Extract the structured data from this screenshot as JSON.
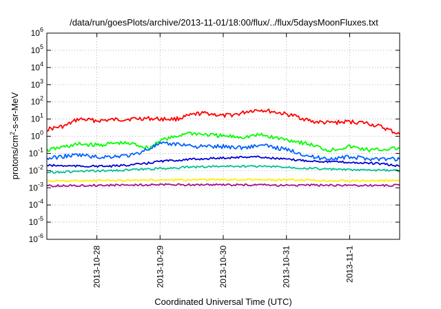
{
  "chart_data": {
    "type": "line",
    "title": "/data/run/goesPlots/archive/2013-11-01/18:00/flux/../flux/5daysMoonFluxes.txt",
    "xlabel": "Coordinated Universal Time (UTC)",
    "ylabel": {
      "pre": "protons/cm",
      "sup": "2",
      "post": "-s-sr-MeV"
    },
    "y_scale": "log",
    "ylim_exp": [
      -6,
      6
    ],
    "y_ticks": [
      {
        "base": "10",
        "exp": "-6"
      },
      {
        "base": "10",
        "exp": "-5"
      },
      {
        "base": "10",
        "exp": "-4"
      },
      {
        "base": "10",
        "exp": "-3"
      },
      {
        "base": "10",
        "exp": "-2"
      },
      {
        "base": "10",
        "exp": "-1"
      },
      {
        "base": "10",
        "exp": "0"
      },
      {
        "base": "10",
        "exp": "1"
      },
      {
        "base": "10",
        "exp": "2"
      },
      {
        "base": "10",
        "exp": "3"
      },
      {
        "base": "10",
        "exp": "4"
      },
      {
        "base": "10",
        "exp": "5"
      },
      {
        "base": "10",
        "exp": "6"
      }
    ],
    "x_start": "2013-10-27 05:00",
    "x_end": "2013-11-01 19:00",
    "x_ticks": [
      {
        "label": "2013-10-28",
        "t": "2013-10-28 00:00"
      },
      {
        "label": "2013-10-29",
        "t": "2013-10-29 00:00"
      },
      {
        "label": "2013-10-30",
        "t": "2013-10-30 00:00"
      },
      {
        "label": "2013-10-31",
        "t": "2013-10-31 00:00"
      },
      {
        "label": "2013-11-1",
        "t": "2013-11-01 00:00"
      }
    ],
    "grid": true,
    "series": [
      {
        "color": "#ff0000",
        "t": [
          "2013-10-27 05:00",
          "2013-10-27 12:00",
          "2013-10-27 17:00",
          "2013-10-28 00:00",
          "2013-10-28 06:00",
          "2013-10-28 12:00",
          "2013-10-28 18:00",
          "2013-10-29 00:00",
          "2013-10-29 06:00",
          "2013-10-29 10:00",
          "2013-10-29 14:00",
          "2013-10-29 18:00",
          "2013-10-30 00:00",
          "2013-10-30 06:00",
          "2013-10-30 10:00",
          "2013-10-30 14:00",
          "2013-10-30 20:00",
          "2013-10-31 04:00",
          "2013-10-31 10:00",
          "2013-10-31 16:00",
          "2013-11-01 00:00",
          "2013-11-01 06:00",
          "2013-11-01 12:00",
          "2013-11-01 19:00"
        ],
        "y": [
          2.5,
          4,
          10,
          8,
          9,
          10,
          11,
          10,
          10,
          14,
          20,
          22,
          15,
          20,
          30,
          35,
          25,
          14,
          7,
          6,
          7,
          6,
          3.5,
          1.3
        ]
      },
      {
        "color": "#00ff00",
        "t": [
          "2013-10-27 05:00",
          "2013-10-27 12:00",
          "2013-10-27 18:00",
          "2013-10-28 00:00",
          "2013-10-28 08:00",
          "2013-10-28 14:00",
          "2013-10-28 20:00",
          "2013-10-29 00:00",
          "2013-10-29 06:00",
          "2013-10-29 10:00",
          "2013-10-29 16:00",
          "2013-10-30 00:00",
          "2013-10-30 08:00",
          "2013-10-30 14:00",
          "2013-10-30 20:00",
          "2013-10-31 04:00",
          "2013-10-31 10:00",
          "2013-10-31 16:00",
          "2013-11-01 00:00",
          "2013-11-01 08:00",
          "2013-11-01 19:00"
        ],
        "y": [
          0.15,
          0.25,
          0.35,
          0.3,
          0.4,
          0.35,
          0.2,
          0.6,
          0.9,
          1.6,
          1.3,
          1.0,
          0.9,
          1.2,
          0.8,
          0.5,
          0.3,
          0.15,
          0.25,
          0.15,
          0.2
        ]
      },
      {
        "color": "#0060ff",
        "t": [
          "2013-10-27 05:00",
          "2013-10-27 12:00",
          "2013-10-27 18:00",
          "2013-10-28 00:00",
          "2013-10-28 08:00",
          "2013-10-28 14:00",
          "2013-10-28 20:00",
          "2013-10-29 00:00",
          "2013-10-29 08:00",
          "2013-10-29 14:00",
          "2013-10-30 00:00",
          "2013-10-30 08:00",
          "2013-10-30 14:00",
          "2013-10-30 20:00",
          "2013-10-31 04:00",
          "2013-10-31 10:00",
          "2013-10-31 16:00",
          "2013-11-01 00:00",
          "2013-11-01 08:00",
          "2013-11-01 19:00"
        ],
        "y": [
          0.05,
          0.07,
          0.08,
          0.06,
          0.07,
          0.08,
          0.2,
          0.35,
          0.35,
          0.25,
          0.25,
          0.22,
          0.3,
          0.22,
          0.12,
          0.06,
          0.05,
          0.06,
          0.05,
          0.045
        ]
      },
      {
        "color": "#0000d8",
        "t": [
          "2013-10-27 05:00",
          "2013-10-27 18:00",
          "2013-10-28 06:00",
          "2013-10-28 18:00",
          "2013-10-29 00:00",
          "2013-10-29 12:00",
          "2013-10-30 00:00",
          "2013-10-30 12:00",
          "2013-10-31 00:00",
          "2013-10-31 12:00",
          "2013-11-01 00:00",
          "2013-11-01 12:00",
          "2013-11-01 19:00"
        ],
        "y": [
          0.02,
          0.018,
          0.018,
          0.025,
          0.035,
          0.045,
          0.055,
          0.065,
          0.045,
          0.035,
          0.03,
          0.025,
          0.018
        ]
      },
      {
        "color": "#00c090",
        "t": [
          "2013-10-27 05:00",
          "2013-10-27 18:00",
          "2013-10-28 06:00",
          "2013-10-28 18:00",
          "2013-10-29 12:00",
          "2013-10-30 00:00",
          "2013-10-30 12:00",
          "2013-10-31 00:00",
          "2013-10-31 12:00",
          "2013-11-01 00:00",
          "2013-11-01 19:00"
        ],
        "y": [
          0.008,
          0.009,
          0.01,
          0.012,
          0.016,
          0.018,
          0.018,
          0.016,
          0.013,
          0.011,
          0.01
        ]
      },
      {
        "color": "#ffee00",
        "t": [
          "2013-10-27 05:00",
          "2013-10-28 00:00",
          "2013-10-29 00:00",
          "2013-10-30 00:00",
          "2013-10-31 00:00",
          "2013-11-01 00:00",
          "2013-11-01 19:00"
        ],
        "y": [
          0.0025,
          0.0026,
          0.0028,
          0.003,
          0.0028,
          0.0026,
          0.0026
        ]
      },
      {
        "color": "#a01090",
        "t": [
          "2013-10-27 05:00",
          "2013-10-28 00:00",
          "2013-10-29 00:00",
          "2013-10-30 00:00",
          "2013-10-31 00:00",
          "2013-11-01 00:00",
          "2013-11-01 19:00"
        ],
        "y": [
          0.0013,
          0.0014,
          0.0015,
          0.0015,
          0.0014,
          0.0014,
          0.0014
        ]
      }
    ]
  }
}
